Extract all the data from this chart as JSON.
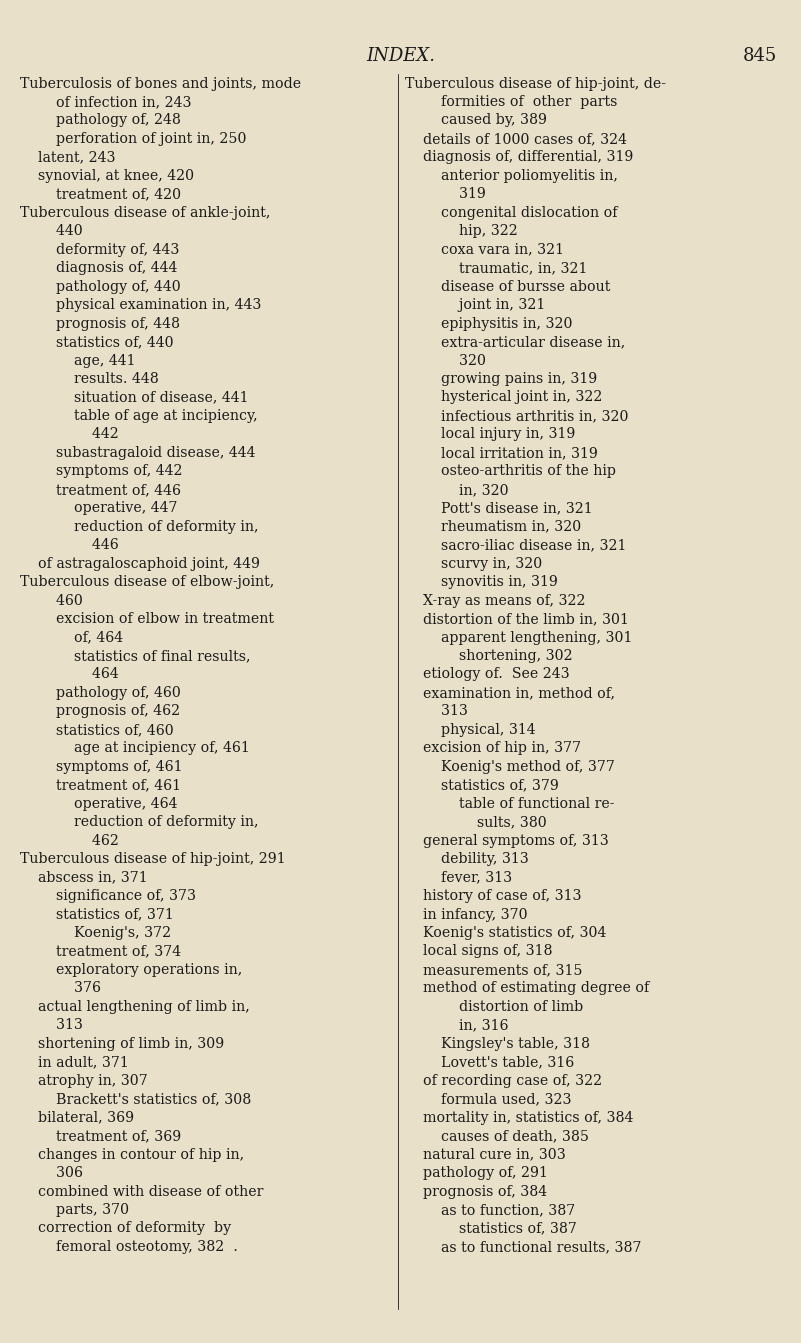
{
  "bg_color": "#e8e0c8",
  "text_color": "#1a1a1a",
  "title": "INDEX.",
  "page_num": "845",
  "title_fontsize": 13,
  "body_fontsize": 10.2,
  "left_col": [
    "Tuberculosis of bones and joints, mode",
    "        of infection in, 243",
    "        pathology of, 248",
    "        perforation of joint in, 250",
    "    latent, 243",
    "    synovial, at knee, 420",
    "        treatment of, 420",
    "Tuberculous disease of ankle-joint,",
    "        440",
    "        deformity of, 443",
    "        diagnosis of, 444",
    "        pathology of, 440",
    "        physical examination in, 443",
    "        prognosis of, 448",
    "        statistics of, 440",
    "            age, 441",
    "            results. 448",
    "            situation of disease, 441",
    "            table of age at incipiency,",
    "                442",
    "        subastragaloid disease, 444",
    "        symptoms of, 442",
    "        treatment of, 446",
    "            operative, 447",
    "            reduction of deformity in,",
    "                446",
    "    of astragaloscaphoid joint, 449",
    "Tuberculous disease of elbow-joint,",
    "        460",
    "        excision of elbow in treatment",
    "            of, 464",
    "            statistics of final results,",
    "                464",
    "        pathology of, 460",
    "        prognosis of, 462",
    "        statistics of, 460",
    "            age at incipiency of, 461",
    "        symptoms of, 461",
    "        treatment of, 461",
    "            operative, 464",
    "            reduction of deformity in,",
    "                462",
    "Tuberculous disease of hip-joint, 291",
    "    abscess in, 371",
    "        significance of, 373",
    "        statistics of, 371",
    "            Koenig's, 372",
    "        treatment of, 374",
    "        exploratory operations in,",
    "            376",
    "    actual lengthening of limb in,",
    "        313",
    "    shortening of limb in, 309",
    "    in adult, 371",
    "    atrophy in, 307",
    "        Brackett's statistics of, 308",
    "    bilateral, 369",
    "        treatment of, 369",
    "    changes in contour of hip in,",
    "        306",
    "    combined with disease of other",
    "        parts, 370",
    "    correction of deformity  by",
    "        femoral osteotomy, 382  ."
  ],
  "right_col": [
    "Tuberculous disease of hip-joint, de-",
    "        formities of  other  parts",
    "        caused by, 389",
    "    details of 1000 cases of, 324",
    "    diagnosis of, differential, 319",
    "        anterior poliomyelitis in,",
    "            319",
    "        congenital dislocation of",
    "            hip, 322",
    "        coxa vara in, 321",
    "            traumatic, in, 321",
    "        disease of bursse about",
    "            joint in, 321",
    "        epiphysitis in, 320",
    "        extra-articular disease in,",
    "            320",
    "        growing pains in, 319",
    "        hysterical joint in, 322",
    "        infectious arthritis in, 320",
    "        local injury in, 319",
    "        local irritation in, 319",
    "        osteo-arthritis of the hip",
    "            in, 320",
    "        Pott's disease in, 321",
    "        rheumatism in, 320",
    "        sacro-iliac disease in, 321",
    "        scurvy in, 320",
    "        synovitis in, 319",
    "    X-ray as means of, 322",
    "    distortion of the limb in, 301",
    "        apparent lengthening, 301",
    "            shortening, 302",
    "    etiology of.  See 243",
    "    examination in, method of,",
    "        313",
    "        physical, 314",
    "    excision of hip in, 377",
    "        Koenig's method of, 377",
    "        statistics of, 379",
    "            table of functional re-",
    "                sults, 380",
    "    general symptoms of, 313",
    "        debility, 313",
    "        fever, 313",
    "    history of case of, 313",
    "    in infancy, 370",
    "    Koenig's statistics of, 304",
    "    local signs of, 318",
    "    measurements of, 315",
    "    method of estimating degree of",
    "            distortion of limb",
    "            in, 316",
    "        Kingsley's table, 318",
    "        Lovett's table, 316",
    "    of recording case of, 322",
    "        formula used, 323",
    "    mortality in, statistics of, 384",
    "        causes of death, 385",
    "    natural cure in, 303",
    "    pathology of, 291",
    "    prognosis of, 384",
    "        as to function, 387",
    "            statistics of, 387",
    "        as to functional results, 387"
  ]
}
